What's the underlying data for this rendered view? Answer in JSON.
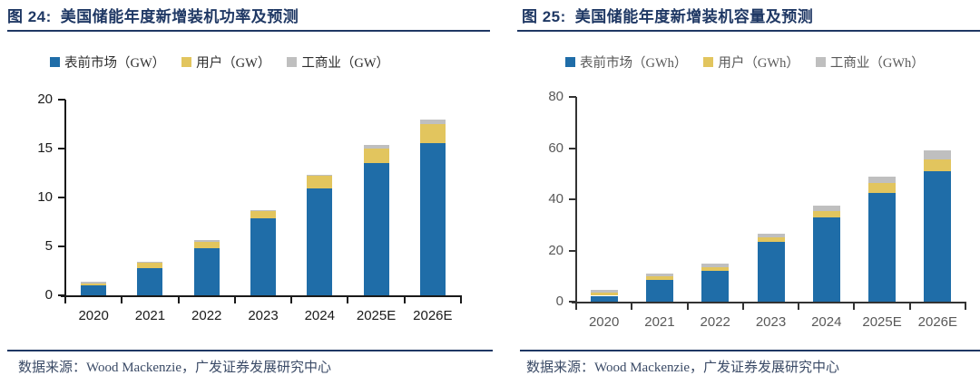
{
  "page": {
    "title_color": "#1F3864",
    "rule_color": "#1F3864",
    "source_text_color": "#3A4A66"
  },
  "chart_data": [
    {
      "type": "bar",
      "stacked": true,
      "figure_label": "图 24:",
      "title": "美国储能年度新增装机功率及预测",
      "unit": "GW",
      "categories": [
        "2020",
        "2021",
        "2022",
        "2023",
        "2024",
        "2025E",
        "2026E"
      ],
      "series": [
        {
          "key": "front-of-meter",
          "name": "表前市场（GW）",
          "color": "#1F6DA8",
          "values": [
            1.0,
            2.8,
            4.8,
            7.9,
            10.9,
            13.5,
            15.6
          ]
        },
        {
          "key": "residential",
          "name": "用户（GW）",
          "color": "#E2C55E",
          "values": [
            0.2,
            0.5,
            0.7,
            0.7,
            1.3,
            1.5,
            1.9
          ]
        },
        {
          "key": "commercial-industrial",
          "name": "工商业（GW）",
          "color": "#BFBFBF",
          "values": [
            0.15,
            0.1,
            0.15,
            0.15,
            0.1,
            0.4,
            0.5
          ]
        }
      ],
      "ylim": [
        0,
        20
      ],
      "yticks": [
        0,
        5,
        10,
        15,
        20
      ],
      "legend_position": "top",
      "grid": false,
      "axis_color": "#1a1a1a",
      "axis_label_color": "#1a1a1a",
      "legend_text_color": "#2e2e2e",
      "source": "数据来源：Wood Mackenzie，广发证券发展研究中心"
    },
    {
      "type": "bar",
      "stacked": true,
      "figure_label": "图 25:",
      "title": "美国储能年度新增装机容量及预测",
      "unit": "GWh",
      "categories": [
        "2020",
        "2021",
        "2022",
        "2023",
        "2024",
        "2025E",
        "2026E"
      ],
      "series": [
        {
          "key": "front-of-meter",
          "name": "表前市场（GWh）",
          "color": "#1F6DA8",
          "values": [
            2.3,
            8.5,
            12.0,
            23.5,
            33.0,
            42.5,
            51.0
          ]
        },
        {
          "key": "residential",
          "name": "用户（GWh）",
          "color": "#E2C55E",
          "values": [
            1.2,
            1.3,
            1.5,
            1.5,
            2.5,
            3.8,
            4.5
          ]
        },
        {
          "key": "commercial-industrial",
          "name": "工商业（GWh）",
          "color": "#BFBFBF",
          "values": [
            1.0,
            1.0,
            1.2,
            1.5,
            2.0,
            2.5,
            3.5
          ]
        }
      ],
      "ylim": [
        0,
        80
      ],
      "yticks": [
        0,
        20,
        40,
        60,
        80
      ],
      "legend_position": "top",
      "grid": false,
      "axis_color": "#333333",
      "axis_label_color": "#595959",
      "legend_text_color": "#595959",
      "source": "数据来源：Wood Mackenzie，广发证券发展研究中心"
    }
  ]
}
